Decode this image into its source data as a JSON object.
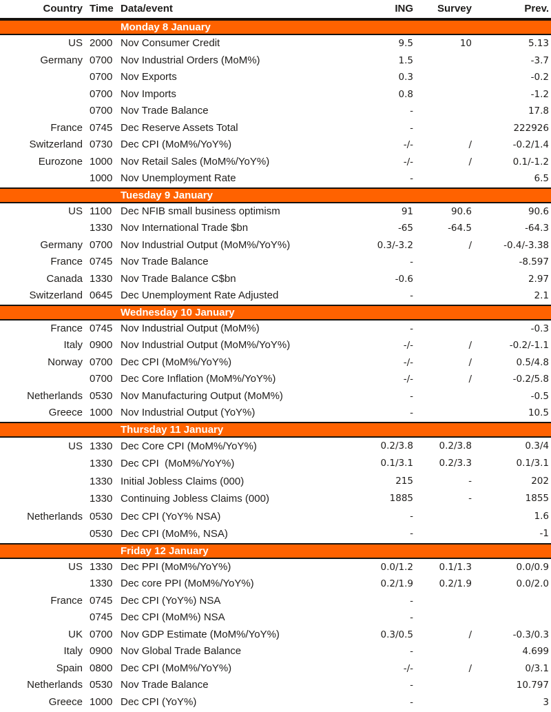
{
  "colors": {
    "accent_orange": "#ff6200",
    "band_text": "#ffffff",
    "border": "#17120e",
    "text": "#1f1d1b"
  },
  "header": {
    "country": "Country",
    "time": "Time",
    "event": "Data/event",
    "ing": "ING",
    "survey": "Survey",
    "prev": "Prev."
  },
  "sections": [
    {
      "label": "Monday 8 January",
      "rows": [
        {
          "country": "US",
          "time": "2000",
          "event": "Nov Consumer Credit",
          "ing": "9.5",
          "survey": "10",
          "prev": "5.13"
        },
        {
          "country": "Germany",
          "time": "0700",
          "event": "Nov Industrial Orders (MoM%)",
          "ing": "1.5",
          "survey": "",
          "prev": "-3.7"
        },
        {
          "country": "",
          "time": "0700",
          "event": "Nov Exports",
          "ing": "0.3",
          "survey": "",
          "prev": "-0.2"
        },
        {
          "country": "",
          "time": "0700",
          "event": "Nov Imports",
          "ing": "0.8",
          "survey": "",
          "prev": "-1.2"
        },
        {
          "country": "",
          "time": "0700",
          "event": "Nov Trade Balance",
          "ing": "-",
          "survey": "",
          "prev": "17.8"
        },
        {
          "country": "France",
          "time": "0745",
          "event": "Dec Reserve Assets Total",
          "ing": "-",
          "survey": "",
          "prev": "222926"
        },
        {
          "country": "Switzerland",
          "time": "0730",
          "event": "Dec CPI (MoM%/YoY%)",
          "ing": "-/-",
          "survey": "/",
          "prev": "-0.2/1.4"
        },
        {
          "country": "Eurozone",
          "time": "1000",
          "event": "Nov Retail Sales (MoM%/YoY%)",
          "ing": "-/-",
          "survey": "/",
          "prev": "0.1/-1.2"
        },
        {
          "country": "",
          "time": "1000",
          "event": "Nov Unemployment Rate",
          "ing": "-",
          "survey": "",
          "prev": "6.5"
        }
      ]
    },
    {
      "label": "Tuesday 9 January",
      "rows": [
        {
          "country": "US",
          "time": "1100",
          "event": "Dec NFIB small business optimism",
          "ing": "91",
          "survey": "90.6",
          "prev": "90.6"
        },
        {
          "country": "",
          "time": "1330",
          "event": "Nov International Trade $bn",
          "ing": "-65",
          "survey": "-64.5",
          "prev": "-64.3"
        },
        {
          "country": "Germany",
          "time": "0700",
          "event": "Nov Industrial Output (MoM%/YoY%)",
          "ing": "0.3/-3.2",
          "survey": "/",
          "prev": "-0.4/-3.38"
        },
        {
          "country": "France",
          "time": "0745",
          "event": "Nov Trade Balance",
          "ing": "-",
          "survey": "",
          "prev": "-8.597"
        },
        {
          "country": "Canada",
          "time": "1330",
          "event": "Nov Trade Balance C$bn",
          "ing": "-0.6",
          "survey": "",
          "prev": "2.97"
        },
        {
          "country": "Switzerland",
          "time": "0645",
          "event": "Dec Unemployment Rate Adjusted",
          "ing": "-",
          "survey": "",
          "prev": "2.1"
        }
      ]
    },
    {
      "label": "Wednesday 10 January",
      "rows": [
        {
          "country": "France",
          "time": "0745",
          "event": "Nov Industrial Output (MoM%)",
          "ing": "-",
          "survey": "",
          "prev": "-0.3"
        },
        {
          "country": "Italy",
          "time": "0900",
          "event": "Nov Industrial Output (MoM%/YoY%)",
          "ing": "-/-",
          "survey": "/",
          "prev": "-0.2/-1.1"
        },
        {
          "country": "Norway",
          "time": "0700",
          "event": "Dec CPI (MoM%/YoY%)",
          "ing": "-/-",
          "survey": "/",
          "prev": "0.5/4.8"
        },
        {
          "country": "",
          "time": "0700",
          "event": "Dec Core Inflation (MoM%/YoY%)",
          "ing": "-/-",
          "survey": "/",
          "prev": "-0.2/5.8"
        },
        {
          "country": "Netherlands",
          "time": "0530",
          "event": "Nov Manufacturing Output (MoM%)",
          "ing": "-",
          "survey": "",
          "prev": "-0.5"
        },
        {
          "country": "Greece",
          "time": "1000",
          "event": "Nov Industrial Output (YoY%)",
          "ing": "-",
          "survey": "",
          "prev": "10.5"
        }
      ]
    },
    {
      "label": "Thursday 11 January",
      "tall": true,
      "rows": [
        {
          "country": "US",
          "time": "1330",
          "event": "Dec Core CPI (MoM%/YoY%)",
          "ing": "0.2/3.8",
          "survey": "0.2/3.8",
          "prev": "0.3/4"
        },
        {
          "country": "",
          "time": "1330",
          "event": "Dec CPI  (MoM%/YoY%)",
          "ing": "0.1/3.1",
          "survey": "0.2/3.3",
          "prev": "0.1/3.1"
        },
        {
          "country": "",
          "time": "1330",
          "event": "Initial Jobless Claims (000)",
          "ing": "215",
          "survey": "-",
          "prev": "202"
        },
        {
          "country": "",
          "time": "1330",
          "event": "Continuing Jobless Claims (000)",
          "ing": "1885",
          "survey": "-",
          "prev": "1855"
        },
        {
          "country": "Netherlands",
          "time": "0530",
          "event": "Dec CPI (YoY% NSA)",
          "ing": "-",
          "survey": "",
          "prev": "1.6"
        },
        {
          "country": "",
          "time": "0530",
          "event": "Dec CPI (MoM%, NSA)",
          "ing": "-",
          "survey": "",
          "prev": "-1"
        }
      ]
    },
    {
      "label": "Friday 12 January",
      "rows": [
        {
          "country": "US",
          "time": "1330",
          "event": "Dec PPI (MoM%/YoY%)",
          "ing": "0.0/1.2",
          "survey": "0.1/1.3",
          "prev": "0.0/0.9"
        },
        {
          "country": "",
          "time": "1330",
          "event": "Dec core PPI (MoM%/YoY%)",
          "ing": "0.2/1.9",
          "survey": "0.2/1.9",
          "prev": "0.0/2.0"
        },
        {
          "country": "France",
          "time": "0745",
          "event": "Dec CPI (YoY%) NSA",
          "ing": "-",
          "survey": "",
          "prev": ""
        },
        {
          "country": "",
          "time": "0745",
          "event": "Dec CPI (MoM%) NSA",
          "ing": "-",
          "survey": "",
          "prev": ""
        },
        {
          "country": "UK",
          "time": "0700",
          "event": "Nov GDP Estimate (MoM%/YoY%)",
          "ing": "0.3/0.5",
          "survey": "/",
          "prev": "-0.3/0.3"
        },
        {
          "country": "Italy",
          "time": "0900",
          "event": "Nov Global Trade Balance",
          "ing": "-",
          "survey": "",
          "prev": "4.699"
        },
        {
          "country": "Spain",
          "time": "0800",
          "event": "Dec CPI (MoM%/YoY%)",
          "ing": "-/-",
          "survey": "/",
          "prev": "0/3.1"
        },
        {
          "country": "Netherlands",
          "time": "0530",
          "event": "Nov Trade Balance",
          "ing": "-",
          "survey": "",
          "prev": "10.797"
        },
        {
          "country": "Greece",
          "time": "1000",
          "event": "Dec CPI (YoY%)",
          "ing": "-",
          "survey": "",
          "prev": "3"
        }
      ]
    }
  ]
}
